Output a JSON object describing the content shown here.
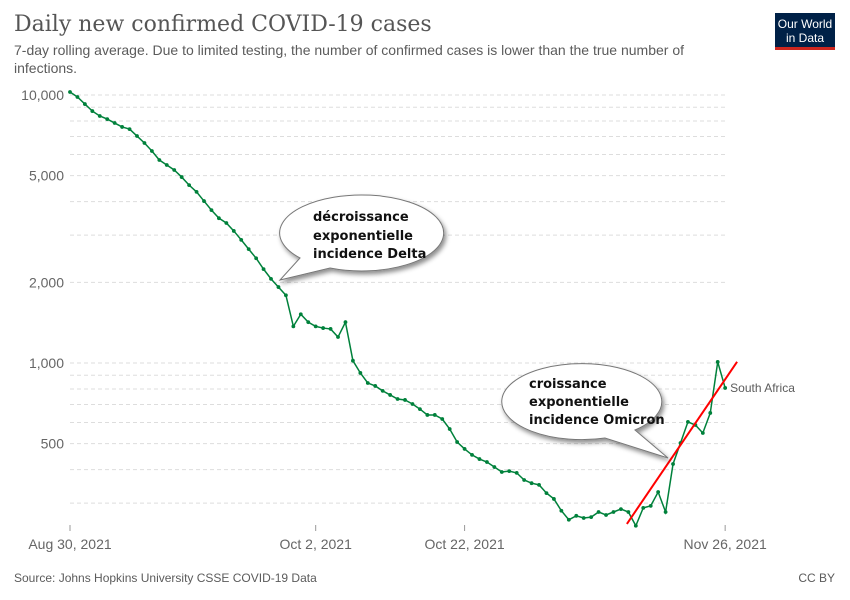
{
  "header": {
    "title": "Daily new confirmed COVID-19 cases",
    "subtitle_line1": "7-day rolling average. Due to limited testing, the number of confirmed cases is lower than the true number of",
    "subtitle_line2": "infections."
  },
  "logo": {
    "line1": "Our World",
    "line2": "in Data",
    "bg": "#002147",
    "accent": "#ce261e"
  },
  "footer": {
    "source": "Source: Johns Hopkins University CSSE COVID-19 Data",
    "license": "CC BY"
  },
  "annotations": {
    "delta": [
      "décroissance",
      "exponentielle",
      "incidence Delta"
    ],
    "omicron": [
      "croissance",
      "exponentielle",
      "incidence Omicron"
    ]
  },
  "chart_data": {
    "type": "line",
    "title": "Daily new confirmed COVID-19 cases",
    "yscale": "log",
    "ylim": [
      240,
      10500
    ],
    "yticks": [
      10000,
      5000,
      2000,
      1000,
      500
    ],
    "ytick_labels": [
      "10,000",
      "5,000",
      "2,000",
      "1,000",
      "500"
    ],
    "minor_grid": [
      9000,
      8000,
      7000,
      6000,
      4000,
      3000,
      900,
      800,
      700,
      600,
      400,
      300
    ],
    "x_start": "Aug 30, 2021",
    "xticks": [
      {
        "day": 0,
        "label": "Aug 30, 2021"
      },
      {
        "day": 33,
        "label": "Oct 2, 2021"
      },
      {
        "day": 53,
        "label": "Oct 22, 2021"
      },
      {
        "day": 88,
        "label": "Nov 26, 2021"
      }
    ],
    "series": [
      {
        "name": "South Africa",
        "color": "#00813b",
        "values": [
          10260,
          9830,
          9250,
          8710,
          8350,
          8130,
          7860,
          7600,
          7460,
          7030,
          6620,
          6180,
          5720,
          5480,
          5250,
          4940,
          4610,
          4350,
          4020,
          3720,
          3470,
          3330,
          3110,
          2880,
          2660,
          2460,
          2240,
          2060,
          1920,
          1790,
          1370,
          1520,
          1420,
          1370,
          1350,
          1340,
          1250,
          1420,
          1020,
          918,
          842,
          821,
          787,
          760,
          734,
          728,
          703,
          673,
          640,
          640,
          618,
          567,
          507,
          478,
          454,
          438,
          427,
          409,
          392,
          395,
          389,
          366,
          356,
          351,
          327,
          311,
          281,
          260,
          269,
          264,
          266,
          278,
          271,
          278,
          285,
          278,
          247,
          288,
          293,
          330,
          278,
          420,
          503,
          603,
          587,
          548,
          651,
          1009,
          807
        ]
      }
    ],
    "trend_line": {
      "color": "#ff0000",
      "from": {
        "day": 74.8,
        "value": 251
      },
      "to": {
        "day": 89.6,
        "value": 1010
      }
    }
  }
}
